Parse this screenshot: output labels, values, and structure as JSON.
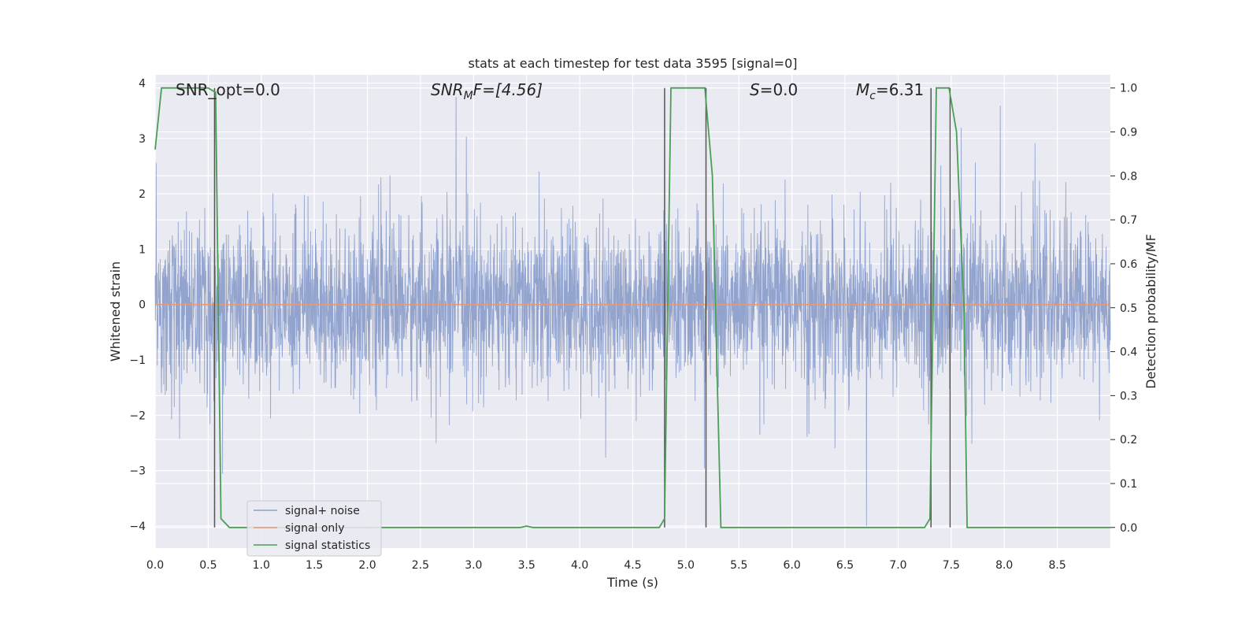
{
  "chart_data": {
    "type": "line",
    "title": "stats at each timestep for test data 3595 [signal=0]",
    "xlabel": "Time (s)",
    "ylabel": "Whitened strain",
    "y2label": "Detection probability/MF",
    "xlim": [
      0.0,
      9.0
    ],
    "ylim": [
      -4.4,
      4.15
    ],
    "y2lim": [
      -0.047,
      1.03
    ],
    "x_ticks": [
      0.0,
      0.5,
      1.0,
      1.5,
      2.0,
      2.5,
      3.0,
      3.5,
      4.0,
      4.5,
      5.0,
      5.5,
      6.0,
      6.5,
      7.0,
      7.5,
      8.0,
      8.5
    ],
    "x_tick_labels": [
      "0.0",
      "0.5",
      "1.0",
      "1.5",
      "2.0",
      "2.5",
      "3.0",
      "3.5",
      "4.0",
      "4.5",
      "5.0",
      "5.5",
      "6.0",
      "6.5",
      "7.0",
      "7.5",
      "8.0",
      "8.5"
    ],
    "y_ticks": [
      4,
      3,
      2,
      1,
      0,
      -1,
      -2,
      -3,
      -4
    ],
    "y_tick_labels": [
      "4",
      "3",
      "2",
      "1",
      "0",
      "−1",
      "−2",
      "−3",
      "−4"
    ],
    "y2_ticks": [
      1.0,
      0.9,
      0.8,
      0.7,
      0.6,
      0.5,
      0.4,
      0.3,
      0.2,
      0.1,
      0.0
    ],
    "y2_tick_labels": [
      "1.0",
      "0.9",
      "0.8",
      "0.7",
      "0.6",
      "0.5",
      "0.4",
      "0.3",
      "0.2",
      "0.1",
      "0.0"
    ],
    "grid": true,
    "legend_position": "lower-left",
    "annotations": {
      "snr_opt": "SNR_opt=0.0",
      "snr_mf_base": "SNR",
      "snr_mf_sub": "M",
      "snr_mf_rest": "F=[4.56]",
      "s_label": "S",
      "s_rest": "=0.0",
      "mc_base": "M",
      "mc_sub": "c",
      "mc_rest": "=6.31"
    },
    "series": [
      {
        "name": "signal+ noise",
        "color": "#8da0cb",
        "kind": "noise",
        "x_range": [
          0.0,
          9.0
        ],
        "typical_amplitude": 1.45,
        "peak_high": 3.75,
        "peak_low": -4.0
      },
      {
        "name": "signal only",
        "color": "#e29a78",
        "kind": "flat",
        "x": [
          0.0,
          9.0
        ],
        "y": [
          0.0,
          0.0
        ]
      },
      {
        "name": "signal statistics",
        "color": "#4b9e55",
        "axis": "right",
        "x": [
          0.0,
          0.06,
          0.12,
          0.5,
          0.57,
          0.62,
          0.7,
          3.44,
          3.5,
          3.56,
          4.75,
          4.8,
          4.86,
          5.18,
          5.25,
          5.3,
          5.33,
          7.25,
          7.3,
          7.36,
          7.48,
          7.55,
          7.62,
          7.65,
          9.0
        ],
        "y": [
          0.86,
          1.0,
          1.0,
          1.0,
          0.99,
          0.02,
          0.0,
          0.0,
          0.003,
          0.0,
          0.0,
          0.02,
          1.0,
          1.0,
          0.8,
          0.3,
          0.0,
          0.0,
          0.02,
          1.0,
          1.0,
          0.9,
          0.5,
          0.0,
          0.0
        ]
      }
    ],
    "threshold_markers": {
      "color": "#555555",
      "x": [
        0.56,
        4.8,
        5.19,
        7.31,
        7.49
      ],
      "y2_top": 1.0,
      "y2_bottom": 0.0
    }
  }
}
